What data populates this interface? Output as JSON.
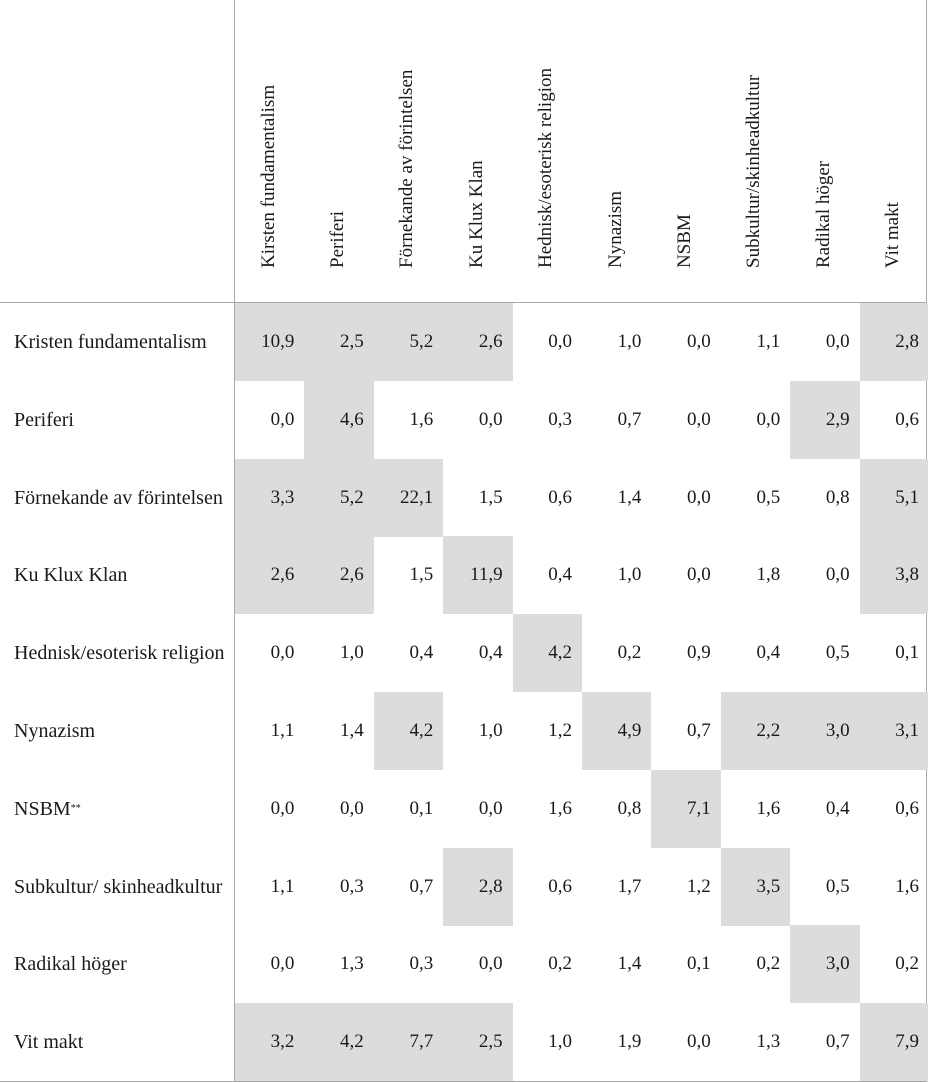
{
  "columns": [
    "Kirsten fundamentalism",
    "Periferi",
    "Förnekande av förintelsen",
    "Ku Klux Klan",
    "Hednisk/esoterisk religion",
    "Nynazism",
    "NSBM",
    "Subkultur/skinheadkultur",
    "Radikal höger",
    "Vit makt"
  ],
  "rows": [
    {
      "label": "Kristen fundamentalism",
      "values": [
        "10,9",
        "2,5",
        "5,2",
        "2,6",
        "0,0",
        "1,0",
        "0,0",
        "1,1",
        "0,0",
        "2,8"
      ],
      "highlight": [
        0,
        1,
        2,
        3,
        9
      ]
    },
    {
      "label": "Periferi",
      "values": [
        "0,0",
        "4,6",
        "1,6",
        "0,0",
        "0,3",
        "0,7",
        "0,0",
        "0,0",
        "2,9",
        "0,6"
      ],
      "highlight": [
        1,
        8
      ]
    },
    {
      "label": "Förnekande av förintelsen",
      "values": [
        "3,3",
        "5,2",
        "22,1",
        "1,5",
        "0,6",
        "1,4",
        "0,0",
        "0,5",
        "0,8",
        "5,1"
      ],
      "highlight": [
        0,
        1,
        2,
        9
      ]
    },
    {
      "label": "Ku Klux Klan",
      "values": [
        "2,6",
        "2,6",
        "1,5",
        "11,9",
        "0,4",
        "1,0",
        "0,0",
        "1,8",
        "0,0",
        "3,8"
      ],
      "highlight": [
        0,
        1,
        3,
        9
      ]
    },
    {
      "label": "Hednisk/esoterisk religion",
      "values": [
        "0,0",
        "1,0",
        "0,4",
        "0,4",
        "4,2",
        "0,2",
        "0,9",
        "0,4",
        "0,5",
        "0,1"
      ],
      "highlight": [
        4
      ]
    },
    {
      "label": "Nynazism",
      "values": [
        "1,1",
        "1,4",
        "4,2",
        "1,0",
        "1,2",
        "4,9",
        "0,7",
        "2,2",
        "3,0",
        "3,1"
      ],
      "highlight": [
        2,
        5,
        7,
        8,
        9
      ]
    },
    {
      "label": "NSBM",
      "label_sup": "**",
      "values": [
        "0,0",
        "0,0",
        "0,1",
        "0,0",
        "1,6",
        "0,8",
        "7,1",
        "1,6",
        "0,4",
        "0,6"
      ],
      "highlight": [
        6
      ]
    },
    {
      "label": "Subkultur/ skinheadkultur",
      "values": [
        "1,1",
        "0,3",
        "0,7",
        "2,8",
        "0,6",
        "1,7",
        "1,2",
        "3,5",
        "0,5",
        "1,6"
      ],
      "highlight": [
        3,
        7
      ]
    },
    {
      "label": "Radikal höger",
      "values": [
        "0,0",
        "1,3",
        "0,3",
        "0,0",
        "0,2",
        "1,4",
        "0,1",
        "0,2",
        "3,0",
        "0,2"
      ],
      "highlight": [
        8
      ]
    },
    {
      "label": "Vit makt",
      "values": [
        "3,2",
        "4,2",
        "7,7",
        "2,5",
        "1,0",
        "1,9",
        "0,0",
        "1,3",
        "0,7",
        "7,9"
      ],
      "highlight": [
        0,
        1,
        2,
        3,
        9
      ]
    }
  ],
  "colors": {
    "highlight": "#dcdcde",
    "border": "#a8a8a8"
  }
}
